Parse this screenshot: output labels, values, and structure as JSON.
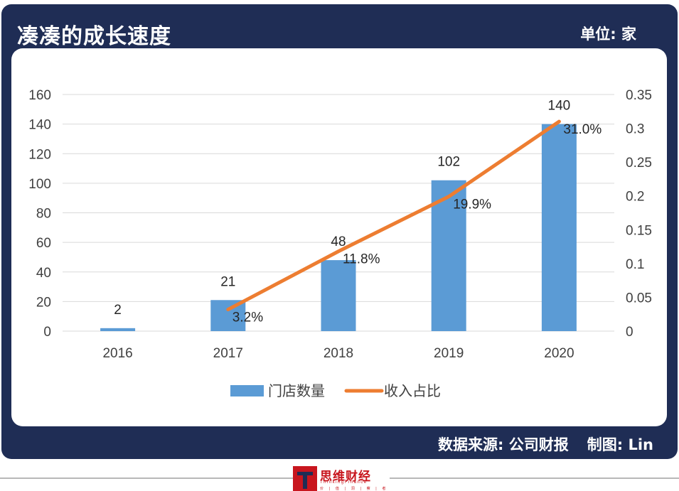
{
  "header": {
    "title": "凑凑的成长速度",
    "unit": "单位: 家"
  },
  "footer": {
    "source": "数据来源: 公司财报",
    "author": "制图: Lin"
  },
  "logo": {
    "name": "思维财经",
    "english": "ThinkingFinance",
    "tagline": "价 | 值 | 洞 | 察 | 者"
  },
  "colors": {
    "frame": "#1f2d55",
    "bar": "#5b9bd5",
    "line": "#ed7d31",
    "brand": "#c8161e"
  },
  "chart_data": {
    "type": "bar+line",
    "categories": [
      "2016",
      "2017",
      "2018",
      "2019",
      "2020"
    ],
    "series": [
      {
        "name": "门店数量",
        "type": "bar",
        "axis": "left",
        "values": [
          2,
          21,
          48,
          102,
          140
        ],
        "labels": [
          "2",
          "21",
          "48",
          "102",
          "140"
        ]
      },
      {
        "name": "收入占比",
        "type": "line",
        "axis": "right",
        "values": [
          null,
          0.032,
          0.118,
          0.199,
          0.31
        ],
        "labels": [
          "",
          "3.2%",
          "11.8%",
          "19.9%",
          "31.0%"
        ]
      }
    ],
    "y_left": {
      "min": 0,
      "max": 160,
      "ticks": [
        "0",
        "20",
        "40",
        "60",
        "80",
        "100",
        "120",
        "140",
        "160"
      ]
    },
    "y_right": {
      "min": 0,
      "max": 0.35,
      "ticks": [
        "0",
        "0.05",
        "0.1",
        "0.15",
        "0.2",
        "0.25",
        "0.3",
        "0.35"
      ]
    },
    "grid": true,
    "legend": "bottom-center"
  }
}
